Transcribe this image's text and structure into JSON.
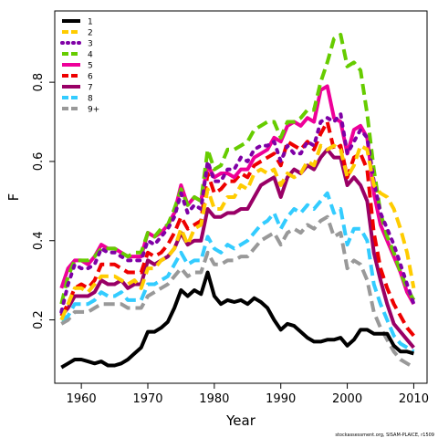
{
  "chart_data": {
    "type": "line",
    "xlabel": "Year",
    "ylabel": "F",
    "xlim": [
      1956,
      2012
    ],
    "ylim": [
      0.04,
      0.98
    ],
    "x_ticks": [
      1960,
      1970,
      1980,
      1990,
      2000,
      2010
    ],
    "x_tick_labels": [
      "1960",
      "1970",
      "1980",
      "1990",
      "2000",
      "2010"
    ],
    "y_ticks": [
      0.2,
      0.4,
      0.6,
      0.8
    ],
    "y_tick_labels": [
      "0.2",
      "0.4",
      "0.6",
      "0.8"
    ],
    "legend_position": "top-left",
    "footnote": "stockassessment.org, SISAM-PLAICE, r1509",
    "x": [
      1957,
      1958,
      1959,
      1960,
      1961,
      1962,
      1963,
      1964,
      1965,
      1966,
      1967,
      1968,
      1969,
      1970,
      1971,
      1972,
      1973,
      1974,
      1975,
      1976,
      1977,
      1978,
      1979,
      1980,
      1981,
      1982,
      1983,
      1984,
      1985,
      1986,
      1987,
      1988,
      1989,
      1990,
      1991,
      1992,
      1993,
      1994,
      1995,
      1996,
      1997,
      1998,
      1999,
      2000,
      2001,
      2002,
      2003,
      2004,
      2005,
      2006,
      2007,
      2008,
      2009,
      2010
    ],
    "series": [
      {
        "name": "1",
        "color": "#000000",
        "dash": "solid",
        "values": [
          0.08,
          0.09,
          0.1,
          0.1,
          0.095,
          0.09,
          0.095,
          0.085,
          0.085,
          0.09,
          0.1,
          0.115,
          0.13,
          0.17,
          0.17,
          0.18,
          0.195,
          0.23,
          0.275,
          0.26,
          0.275,
          0.265,
          0.32,
          0.26,
          0.24,
          0.25,
          0.245,
          0.25,
          0.24,
          0.255,
          0.245,
          0.23,
          0.2,
          0.175,
          0.19,
          0.185,
          0.17,
          0.155,
          0.145,
          0.145,
          0.15,
          0.15,
          0.155,
          0.135,
          0.15,
          0.175,
          0.175,
          0.165,
          0.165,
          0.165,
          0.135,
          0.12,
          0.12,
          0.115
        ]
      },
      {
        "name": "2",
        "color": "#ffcc00",
        "dash": "dashed",
        "values": [
          0.2,
          0.24,
          0.28,
          0.28,
          0.27,
          0.29,
          0.31,
          0.31,
          0.31,
          0.3,
          0.29,
          0.3,
          0.28,
          0.33,
          0.33,
          0.35,
          0.36,
          0.38,
          0.43,
          0.39,
          0.43,
          0.44,
          0.53,
          0.48,
          0.48,
          0.51,
          0.51,
          0.54,
          0.53,
          0.57,
          0.58,
          0.57,
          0.58,
          0.54,
          0.57,
          0.56,
          0.57,
          0.6,
          0.59,
          0.64,
          0.63,
          0.64,
          0.63,
          0.56,
          0.59,
          0.64,
          0.63,
          0.54,
          0.52,
          0.51,
          0.48,
          0.43,
          0.37,
          0.28
        ]
      },
      {
        "name": "3",
        "color": "#7f00a6",
        "dash": "dotted",
        "values": [
          0.22,
          0.29,
          0.34,
          0.33,
          0.33,
          0.34,
          0.38,
          0.37,
          0.37,
          0.36,
          0.35,
          0.35,
          0.35,
          0.4,
          0.39,
          0.41,
          0.43,
          0.46,
          0.52,
          0.47,
          0.49,
          0.48,
          0.6,
          0.55,
          0.55,
          0.58,
          0.58,
          0.61,
          0.6,
          0.63,
          0.64,
          0.64,
          0.65,
          0.6,
          0.64,
          0.62,
          0.62,
          0.65,
          0.64,
          0.7,
          0.71,
          0.7,
          0.72,
          0.62,
          0.65,
          0.68,
          0.66,
          0.55,
          0.47,
          0.43,
          0.39,
          0.34,
          0.29,
          0.24
        ]
      },
      {
        "name": "4",
        "color": "#66cc00",
        "dash": "dashed",
        "values": [
          0.24,
          0.31,
          0.35,
          0.35,
          0.35,
          0.36,
          0.38,
          0.38,
          0.38,
          0.37,
          0.36,
          0.37,
          0.37,
          0.42,
          0.41,
          0.43,
          0.44,
          0.48,
          0.53,
          0.49,
          0.51,
          0.5,
          0.63,
          0.58,
          0.59,
          0.63,
          0.63,
          0.64,
          0.65,
          0.68,
          0.69,
          0.7,
          0.7,
          0.66,
          0.7,
          0.7,
          0.71,
          0.73,
          0.73,
          0.8,
          0.85,
          0.91,
          0.92,
          0.84,
          0.85,
          0.83,
          0.72,
          0.58,
          0.47,
          0.41,
          0.37,
          0.32,
          0.28,
          0.25
        ]
      },
      {
        "name": "5",
        "color": "#ee0099",
        "dash": "solid",
        "values": [
          0.28,
          0.33,
          0.35,
          0.35,
          0.34,
          0.36,
          0.39,
          0.38,
          0.38,
          0.37,
          0.36,
          0.36,
          0.36,
          0.42,
          0.41,
          0.42,
          0.44,
          0.47,
          0.54,
          0.49,
          0.51,
          0.5,
          0.59,
          0.56,
          0.57,
          0.57,
          0.56,
          0.58,
          0.58,
          0.61,
          0.62,
          0.63,
          0.66,
          0.65,
          0.69,
          0.7,
          0.69,
          0.71,
          0.7,
          0.78,
          0.79,
          0.71,
          0.7,
          0.62,
          0.68,
          0.69,
          0.66,
          0.52,
          0.44,
          0.4,
          0.36,
          0.32,
          0.27,
          0.24
        ]
      },
      {
        "name": "6",
        "color": "#ee0000",
        "dash": "dashed",
        "values": [
          0.21,
          0.24,
          0.28,
          0.29,
          0.28,
          0.3,
          0.34,
          0.34,
          0.34,
          0.33,
          0.32,
          0.32,
          0.32,
          0.37,
          0.36,
          0.37,
          0.39,
          0.42,
          0.46,
          0.43,
          0.44,
          0.45,
          0.57,
          0.52,
          0.53,
          0.55,
          0.55,
          0.57,
          0.56,
          0.59,
          0.6,
          0.61,
          0.62,
          0.59,
          0.65,
          0.64,
          0.63,
          0.65,
          0.63,
          0.67,
          0.7,
          0.63,
          0.64,
          0.56,
          0.61,
          0.62,
          0.58,
          0.42,
          0.33,
          0.28,
          0.24,
          0.21,
          0.18,
          0.16
        ]
      },
      {
        "name": "7",
        "color": "#990066",
        "dash": "solid",
        "values": [
          0.21,
          0.23,
          0.26,
          0.26,
          0.26,
          0.27,
          0.3,
          0.29,
          0.29,
          0.3,
          0.28,
          0.29,
          0.29,
          0.35,
          0.34,
          0.35,
          0.36,
          0.38,
          0.42,
          0.39,
          0.4,
          0.4,
          0.48,
          0.46,
          0.46,
          0.47,
          0.47,
          0.48,
          0.48,
          0.51,
          0.54,
          0.55,
          0.56,
          0.51,
          0.56,
          0.58,
          0.57,
          0.59,
          0.58,
          0.61,
          0.63,
          0.61,
          0.61,
          0.54,
          0.56,
          0.54,
          0.5,
          0.37,
          0.3,
          0.24,
          0.19,
          0.17,
          0.15,
          0.13
        ]
      },
      {
        "name": "8",
        "color": "#33ccff",
        "dash": "dashed",
        "values": [
          0.2,
          0.21,
          0.24,
          0.24,
          0.24,
          0.25,
          0.27,
          0.26,
          0.26,
          0.27,
          0.25,
          0.25,
          0.25,
          0.29,
          0.29,
          0.3,
          0.31,
          0.34,
          0.37,
          0.34,
          0.35,
          0.35,
          0.41,
          0.38,
          0.37,
          0.39,
          0.38,
          0.39,
          0.4,
          0.42,
          0.44,
          0.45,
          0.47,
          0.43,
          0.46,
          0.48,
          0.47,
          0.49,
          0.48,
          0.5,
          0.52,
          0.47,
          0.48,
          0.39,
          0.43,
          0.43,
          0.4,
          0.29,
          0.24,
          0.2,
          0.16,
          0.14,
          0.13,
          0.12
        ]
      },
      {
        "name": "9+",
        "color": "#999999",
        "dash": "dashed",
        "values": [
          0.19,
          0.2,
          0.22,
          0.22,
          0.22,
          0.23,
          0.24,
          0.24,
          0.24,
          0.24,
          0.23,
          0.23,
          0.23,
          0.26,
          0.27,
          0.28,
          0.29,
          0.31,
          0.33,
          0.31,
          0.32,
          0.32,
          0.37,
          0.34,
          0.34,
          0.35,
          0.35,
          0.36,
          0.36,
          0.38,
          0.4,
          0.41,
          0.42,
          0.39,
          0.42,
          0.43,
          0.42,
          0.44,
          0.43,
          0.45,
          0.46,
          0.41,
          0.42,
          0.33,
          0.35,
          0.34,
          0.3,
          0.22,
          0.18,
          0.15,
          0.12,
          0.1,
          0.09,
          0.08
        ]
      }
    ]
  }
}
